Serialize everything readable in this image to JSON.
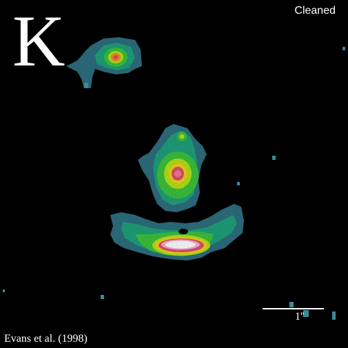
{
  "image": {
    "band_label": "K",
    "processing_label": "Cleaned",
    "citation": "Evans et al. (1998)",
    "scale_bar_label": "1''",
    "colormap": [
      "#3a8a9a",
      "#1fa87a",
      "#3cc23c",
      "#b6e01c",
      "#f2d21a",
      "#f08a2a",
      "#e0506a",
      "#ffffff"
    ]
  }
}
